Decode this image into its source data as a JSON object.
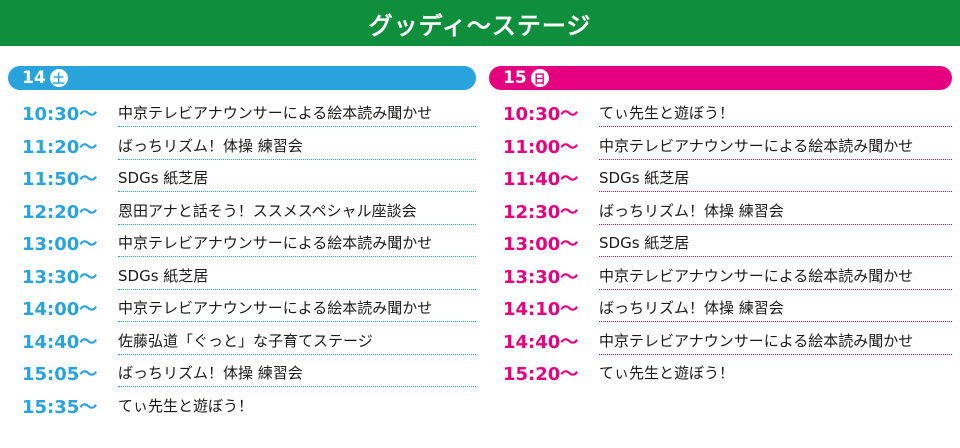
{
  "banner": {
    "title": "グッディ～ステージ",
    "color": "#0f8f3c"
  },
  "days": [
    {
      "date": "14",
      "weekday": "土",
      "accent": "#29a3dc",
      "events": [
        {
          "time": "10:30～",
          "title": "中京テレビアナウンサーによる絵本読み聞かせ"
        },
        {
          "time": "11:20～",
          "title": "ばっちリズム！体操 練習会"
        },
        {
          "time": "11:50～",
          "title": "SDGs 紙芝居"
        },
        {
          "time": "12:20～",
          "title": "恩田アナと話そう！ススメスペシャル座談会"
        },
        {
          "time": "13:00～",
          "title": "中京テレビアナウンサーによる絵本読み聞かせ"
        },
        {
          "time": "13:30～",
          "title": "SDGs 紙芝居"
        },
        {
          "time": "14:00～",
          "title": "中京テレビアナウンサーによる絵本読み聞かせ"
        },
        {
          "time": "14:40～",
          "title": "佐藤弘道「ぐっと」な子育てステージ"
        },
        {
          "time": "15:05～",
          "title": "ばっちリズム！体操 練習会"
        },
        {
          "time": "15:35～",
          "title": "てぃ先生と遊ぼう！"
        }
      ]
    },
    {
      "date": "15",
      "weekday": "日",
      "accent": "#e4007f",
      "events": [
        {
          "time": "10:30～",
          "title": "てぃ先生と遊ぼう！"
        },
        {
          "time": "11:00～",
          "title": "中京テレビアナウンサーによる絵本読み聞かせ"
        },
        {
          "time": "11:40～",
          "title": "SDGs 紙芝居"
        },
        {
          "time": "12:30～",
          "title": "ばっちリズム！体操 練習会"
        },
        {
          "time": "13:00～",
          "title": "SDGs 紙芝居"
        },
        {
          "time": "13:30～",
          "title": "中京テレビアナウンサーによる絵本読み聞かせ"
        },
        {
          "time": "14:10～",
          "title": "ばっちリズム！体操 練習会"
        },
        {
          "time": "14:40～",
          "title": "中京テレビアナウンサーによる絵本読み聞かせ"
        },
        {
          "time": "15:20～",
          "title": "てぃ先生と遊ぼう！"
        }
      ]
    }
  ]
}
